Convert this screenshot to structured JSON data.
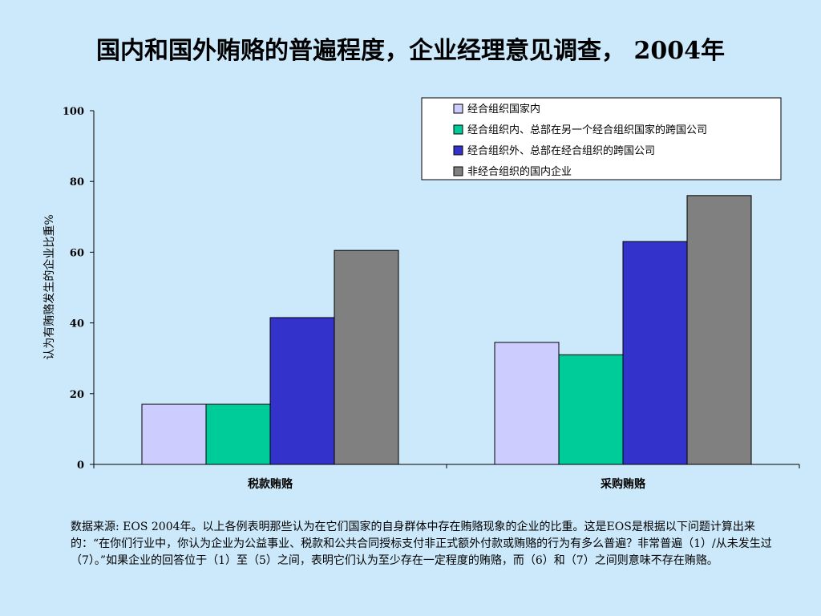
{
  "slide": {
    "title": "国内和国外贿赂的普遍程度，企业经理意见调查， 2004年"
  },
  "chart_data": {
    "type": "bar",
    "title": "",
    "xlabel": "",
    "ylabel": "认为有贿赂发生的企业比重%",
    "ylim": [
      0,
      100
    ],
    "yticks": [
      0,
      20,
      40,
      60,
      80,
      100
    ],
    "categories": [
      "税款贿赂",
      "采购贿赂"
    ],
    "legend_position": "top-right",
    "grid": false,
    "series": [
      {
        "name": "经合组织国家内",
        "color": "#ccccff",
        "values": [
          17,
          34.5
        ]
      },
      {
        "name": "经合组织内、总部在另一个经合组织国家的跨国公司",
        "color": "#00cc99",
        "values": [
          17,
          31
        ]
      },
      {
        "name": "经合组织外、总部在经合组织的跨国公司",
        "color": "#3333cc",
        "values": [
          41.5,
          63
        ]
      },
      {
        "name": "非经合组织的国内企业",
        "color": "#808080",
        "values": [
          60.5,
          76
        ]
      }
    ]
  },
  "note": {
    "text": "数据来源: EOS 2004年。以上各例表明那些认为在它们国家的自身群体中存在贿赂现象的企业的比重。这是EOS是根据以下问题计算出来的：“在你们行业中，你认为企业为公益事业、税款和公共合同授标支付非正式额外付款或贿赂的行为有多么普遍？非常普遍（1）/从未发生过（7）。”如果企业的回答位于（1）至（5）之间，表明它们认为至少存在一定程度的贿赂，而（6）和（7）之间则意味不存在贿赂。"
  }
}
